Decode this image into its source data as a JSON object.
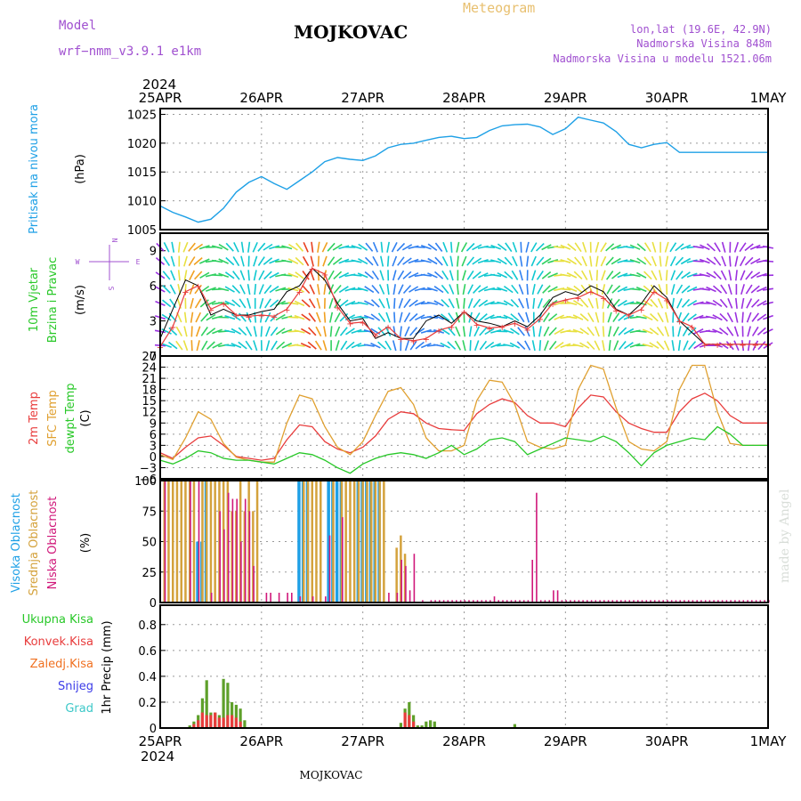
{
  "header": {
    "model_label": "Model",
    "model_name": "wrf−nmm_v3.9.1 e1km",
    "title": "MOJKOVAC",
    "meteogram_label": "Meteogram",
    "lonlat": "lon,lat (19.6E, 42.9N)",
    "altitude": "Nadmorska Visina 848m",
    "model_altitude": "Nadmorska Visina u modelu 1521.06m",
    "year_top": "2024",
    "year_bottom": "2024",
    "footer_station": "MOJKOVAC",
    "watermark": "made by Angel"
  },
  "colors": {
    "pressure": "#1ea0e6",
    "temp2m": "#e83c3c",
    "sfc_temp": "#e0a030",
    "dewpoint": "#28c828",
    "high_cloud": "#1ea0e6",
    "mid_cloud": "#d4a23c",
    "low_cloud": "#d0187a",
    "total_precip": "#5ea02a",
    "conv_precip": "#e83c3c",
    "frozen_precip": "#f07020",
    "snow": "#3c3ce8",
    "graupel": "#3cc8c8"
  },
  "chart_data": [
    {
      "type": "line",
      "panel": "pressure",
      "ylabel_1": "Pritisak na nivou mora",
      "ylabel_2": "(hPa)",
      "x_categories": [
        "25APR",
        "26APR",
        "27APR",
        "28APR",
        "29APR",
        "30APR",
        "1MAY"
      ],
      "ylim": [
        1005,
        1026
      ],
      "yticks": [
        "1005",
        "1010",
        "1015",
        "1020",
        "1025"
      ],
      "grid": true,
      "x_hours": [
        0,
        3,
        6,
        9,
        12,
        15,
        18,
        21,
        24,
        27,
        30,
        33,
        36,
        39,
        42,
        45,
        48,
        51,
        54,
        57,
        60,
        63,
        66,
        69,
        72,
        75,
        78,
        81,
        84,
        87,
        90,
        93,
        96,
        99,
        102,
        105,
        108,
        111,
        114,
        117,
        120,
        123,
        126,
        129,
        132,
        135,
        138,
        141,
        144
      ],
      "values": [
        1009.1,
        1008.0,
        1007.2,
        1006.3,
        1006.8,
        1008.7,
        1011.5,
        1013.2,
        1014.2,
        1013.0,
        1012.0,
        1013.5,
        1015.0,
        1016.8,
        1017.5,
        1017.2,
        1017.0,
        1017.8,
        1019.2,
        1019.8,
        1020.0,
        1020.5,
        1021.0,
        1021.2,
        1020.8,
        1021.0,
        1022.2,
        1023.0,
        1023.2,
        1023.3,
        1022.8,
        1021.5,
        1022.5,
        1024.5,
        1024.0,
        1023.5,
        1022.0,
        1019.8,
        1019.2,
        1019.8,
        1020.1,
        1018.4,
        1018.4,
        1018.4,
        1018.4,
        1018.4,
        1018.4,
        1018.4,
        1018.4
      ]
    },
    {
      "type": "line",
      "panel": "wind",
      "ylabel_1": "10m Vjetar",
      "ylabel_2": "Brzina i Pravac",
      "ylabel_3": "(m/s)",
      "compass": [
        "N",
        "E",
        "S",
        "W"
      ],
      "ylim": [
        0,
        10.5
      ],
      "yticks": [
        "0",
        "3",
        "6",
        "9"
      ],
      "x_hours": [
        0,
        3,
        6,
        9,
        12,
        15,
        18,
        21,
        24,
        27,
        30,
        33,
        36,
        39,
        42,
        45,
        48,
        51,
        54,
        57,
        60,
        63,
        66,
        69,
        72,
        75,
        78,
        81,
        84,
        87,
        90,
        93,
        96,
        99,
        102,
        105,
        108,
        111,
        114,
        117,
        120,
        123,
        126,
        129,
        132,
        135,
        138,
        141,
        144
      ],
      "speed": [
        0.8,
        2.5,
        5.5,
        6.0,
        4.0,
        4.5,
        3.5,
        3.4,
        3.5,
        3.4,
        4.0,
        5.5,
        7.5,
        7.0,
        4.2,
        2.8,
        2.9,
        1.8,
        2.5,
        1.5,
        1.3,
        1.5,
        2.2,
        2.5,
        3.8,
        2.7,
        2.4,
        2.5,
        2.8,
        2.3,
        3.2,
        4.5,
        4.8,
        5.0,
        5.5,
        5.0,
        3.9,
        3.5,
        4.0,
        5.5,
        4.8,
        3.0,
        2.5,
        1.0,
        1.0,
        1.0,
        1.0,
        1.0,
        1.0
      ],
      "gust": [
        1.5,
        4.0,
        6.5,
        6.0,
        3.5,
        4.0,
        3.5,
        3.5,
        3.8,
        4.0,
        5.5,
        6.0,
        7.5,
        6.5,
        4.5,
        3.0,
        3.2,
        1.5,
        2.0,
        1.5,
        1.5,
        3.0,
        3.5,
        2.8,
        3.8,
        3.0,
        2.8,
        2.5,
        3.0,
        2.5,
        3.5,
        5.0,
        5.5,
        5.2,
        6.0,
        5.5,
        4.0,
        3.5,
        4.5,
        6.0,
        5.0,
        3.0,
        2.0,
        1.0,
        1.0,
        1.0,
        1.0,
        1.0,
        1.0
      ]
    },
    {
      "type": "line",
      "panel": "temperature",
      "ylabel_1": "2m Temp",
      "ylabel_2": "SFC Temp",
      "ylabel_3": "dewpt Temp",
      "ylabel_4": "(C)",
      "ylim": [
        -6,
        27
      ],
      "yticks": [
        "−6",
        "−3",
        "0",
        "3",
        "6",
        "9",
        "12",
        "15",
        "18",
        "21",
        "24",
        "27"
      ],
      "x_hours": [
        0,
        3,
        6,
        9,
        12,
        15,
        18,
        21,
        24,
        27,
        30,
        33,
        36,
        39,
        42,
        45,
        48,
        51,
        54,
        57,
        60,
        63,
        66,
        69,
        72,
        75,
        78,
        81,
        84,
        87,
        90,
        93,
        96,
        99,
        102,
        105,
        108,
        111,
        114,
        117,
        120,
        123,
        126,
        129,
        132,
        135,
        138,
        141,
        144
      ],
      "series": [
        {
          "name": "2m Temp",
          "values": [
            1.0,
            -0.5,
            2.5,
            5.0,
            5.5,
            3.0,
            0.0,
            -0.5,
            -1.0,
            -0.5,
            4.5,
            8.5,
            8.0,
            4.0,
            2.0,
            1.0,
            2.5,
            5.5,
            10.0,
            12.0,
            11.5,
            9.0,
            7.5,
            7.2,
            7.0,
            11.5,
            14.0,
            15.5,
            14.5,
            11.0,
            9.0,
            9.0,
            8.0,
            13.0,
            16.5,
            16.0,
            12.0,
            9.0,
            7.5,
            6.5,
            6.5,
            12.0,
            15.5,
            17.0,
            15.0,
            11.0,
            9.0,
            9.0,
            9.0
          ]
        },
        {
          "name": "SFC Temp",
          "values": [
            0.5,
            -0.8,
            5.0,
            12.0,
            10.0,
            3.5,
            -0.2,
            -1.0,
            -1.5,
            -1.5,
            9.0,
            16.5,
            15.5,
            8.0,
            2.5,
            0.5,
            4.0,
            11.0,
            17.5,
            18.5,
            14.0,
            5.0,
            1.5,
            1.5,
            3.0,
            15.0,
            20.5,
            20.0,
            14.0,
            4.0,
            2.5,
            2.0,
            3.0,
            18.0,
            24.5,
            23.5,
            13.0,
            4.0,
            2.0,
            1.5,
            4.0,
            18.0,
            24.5,
            24.5,
            12.0,
            3.5,
            3.0,
            3.0,
            3.0
          ]
        },
        {
          "name": "dewpt Temp",
          "values": [
            -1.0,
            -2.0,
            -0.5,
            1.5,
            1.0,
            -0.5,
            -1.0,
            -1.0,
            -1.5,
            -2.0,
            -0.5,
            1.0,
            0.5,
            -1.0,
            -3.0,
            -4.5,
            -2.0,
            -0.5,
            0.5,
            1.0,
            0.5,
            -0.5,
            1.0,
            3.0,
            0.5,
            2.0,
            4.5,
            5.0,
            4.0,
            0.5,
            2.0,
            3.5,
            5.0,
            4.5,
            4.0,
            5.5,
            4.0,
            1.0,
            -2.5,
            1.0,
            3.0,
            4.0,
            5.0,
            4.5,
            8.0,
            6.0,
            3.0,
            3.0,
            3.0
          ]
        }
      ]
    },
    {
      "type": "bar",
      "panel": "cloud",
      "ylabel_1": "Visoka Oblacnost",
      "ylabel_2": "Srednja Oblacnost",
      "ylabel_3": "Niska Oblacnost",
      "ylabel_4": "(%)",
      "ylim": [
        0,
        100
      ],
      "yticks": [
        "0",
        "25",
        "50",
        "75",
        "100"
      ],
      "series": [
        {
          "name": "Visoka Oblacnost",
          "hours": [
            9,
            10,
            11,
            33,
            34,
            35,
            40,
            41,
            42,
            43,
            47,
            48,
            49,
            50,
            51,
            52
          ],
          "values": [
            50,
            50,
            100,
            100,
            100,
            100,
            100,
            100,
            100,
            100,
            100,
            100,
            100,
            100,
            100,
            100
          ]
        },
        {
          "name": "Srednja Oblacnost",
          "hours": [
            1,
            2,
            3,
            4,
            5,
            6,
            7,
            8,
            10,
            11,
            12,
            13,
            14,
            15,
            16,
            17,
            18,
            19,
            20,
            21,
            22,
            23,
            34,
            35,
            36,
            37,
            38,
            41,
            43,
            44,
            45,
            46,
            47,
            48,
            49,
            50,
            51,
            52,
            53,
            56,
            57,
            58
          ],
          "values": [
            100,
            100,
            100,
            100,
            100,
            100,
            100,
            100,
            100,
            100,
            100,
            100,
            100,
            100,
            100,
            75,
            75,
            100,
            75,
            100,
            75,
            100,
            100,
            100,
            100,
            100,
            100,
            100,
            100,
            100,
            100,
            100,
            100,
            100,
            100,
            100,
            100,
            100,
            100,
            45,
            55,
            40
          ]
        },
        {
          "name": "Niska Oblacnost",
          "hours": [
            1,
            7,
            9,
            12,
            14,
            15,
            16,
            17,
            18,
            19,
            20,
            21,
            22,
            25,
            26,
            28,
            30,
            31,
            33,
            36,
            39,
            40,
            43,
            54,
            56,
            57,
            58,
            59,
            60,
            62,
            64,
            65,
            66,
            67,
            68,
            69,
            70,
            71,
            72,
            73,
            74,
            75,
            76,
            77,
            78,
            79,
            80,
            81,
            82,
            83,
            84,
            85,
            86,
            87,
            88,
            89,
            90,
            91,
            92,
            93,
            94,
            95,
            96,
            97,
            98,
            99,
            100,
            101,
            102,
            103,
            104,
            105,
            106,
            107,
            108,
            109,
            110,
            111,
            112,
            113,
            114,
            115,
            116,
            117,
            118,
            119,
            120,
            121,
            122,
            123,
            124,
            125,
            126,
            127,
            128,
            129,
            130,
            131,
            132,
            133,
            134,
            135,
            136,
            137,
            138,
            139,
            140,
            141,
            142,
            143,
            144
          ],
          "values": [
            100,
            100,
            100,
            8,
            75,
            60,
            90,
            85,
            85,
            50,
            85,
            75,
            30,
            8,
            8,
            8,
            8,
            8,
            5,
            5,
            5,
            55,
            70,
            8,
            8,
            35,
            30,
            10,
            40,
            2,
            2,
            2,
            2,
            2,
            2,
            2,
            2,
            2,
            2,
            2,
            2,
            2,
            2,
            2,
            2,
            5,
            2,
            2,
            2,
            2,
            2,
            2,
            2,
            2,
            35,
            90,
            2,
            2,
            2,
            10,
            10,
            2,
            2,
            2,
            2,
            2,
            2,
            2,
            2,
            2,
            2,
            2,
            2,
            2,
            2,
            2,
            2,
            2,
            2,
            2,
            2,
            2,
            2,
            2,
            2,
            2,
            2,
            2,
            2,
            2,
            2,
            2,
            2,
            2,
            2,
            2,
            2,
            2,
            2,
            2,
            2,
            2,
            2,
            2,
            2,
            2,
            2,
            2,
            2,
            2,
            2
          ]
        }
      ]
    },
    {
      "type": "bar",
      "panel": "precip",
      "legend": [
        "Ukupna Kisa",
        "Konvek.Kisa",
        "Zaledj.Kisa",
        "Snijeg",
        "Grad"
      ],
      "ylabel_1": "1hr Precip (mm)",
      "ylim": [
        0,
        0.95
      ],
      "yticks": [
        "0",
        "0.2",
        "0.4",
        "0.6",
        "0.8"
      ],
      "series": [
        {
          "name": "Ukupna Kisa",
          "hours": [
            7,
            8,
            9,
            10,
            11,
            12,
            13,
            14,
            15,
            16,
            17,
            18,
            19,
            20,
            57,
            58,
            59,
            60,
            61,
            62,
            63,
            64,
            65,
            84
          ],
          "values": [
            0.02,
            0.05,
            0.1,
            0.23,
            0.37,
            0.12,
            0.12,
            0.1,
            0.38,
            0.35,
            0.2,
            0.18,
            0.15,
            0.06,
            0.04,
            0.15,
            0.2,
            0.1,
            0.02,
            0.02,
            0.05,
            0.06,
            0.05,
            0.03
          ]
        },
        {
          "name": "Konvek.Kisa",
          "hours": [
            8,
            9,
            10,
            11,
            12,
            13,
            14,
            15,
            16,
            17,
            18,
            19,
            58,
            59,
            60
          ],
          "values": [
            0.03,
            0.06,
            0.12,
            0.1,
            0.1,
            0.12,
            0.08,
            0.08,
            0.1,
            0.1,
            0.08,
            0.05,
            0.12,
            0.1,
            0.05
          ]
        }
      ]
    }
  ]
}
